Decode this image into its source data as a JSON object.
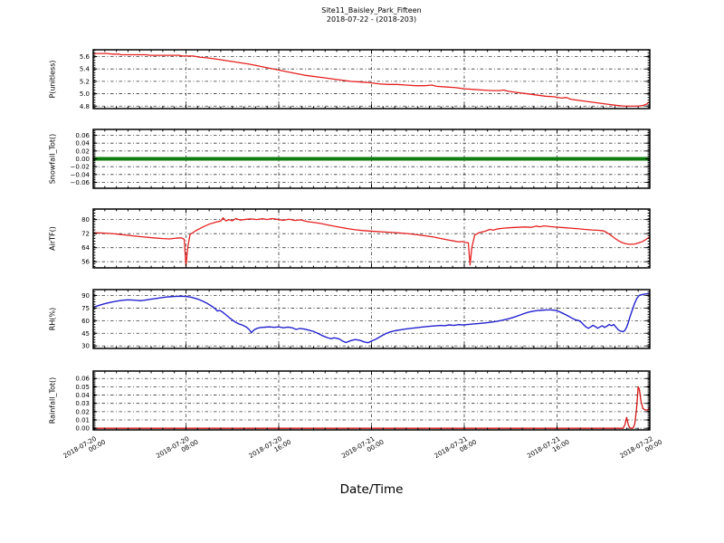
{
  "figure": {
    "title_line1": "Site11_Baisley_Park_Fifteen",
    "title_line2": "2018-07-22 - (2018-203)",
    "xlabel": "Date/Time",
    "background": "#ffffff",
    "grid_color": "#3a3a3a",
    "grid_style": "dash-dot"
  },
  "x_axis": {
    "lim_hours": [
      0,
      48
    ],
    "major_step_hours": 8,
    "minor_step_hours": 1,
    "tick_labels": [
      {
        "date": "2018-07-20",
        "time": "00:00"
      },
      {
        "date": "2018-07-20",
        "time": "08:00"
      },
      {
        "date": "2018-07-20",
        "time": "16:00"
      },
      {
        "date": "2018-07-21",
        "time": "00:00"
      },
      {
        "date": "2018-07-21",
        "time": "08:00"
      },
      {
        "date": "2018-07-21",
        "time": "16:00"
      },
      {
        "date": "2018-07-22",
        "time": "00:00"
      }
    ]
  },
  "chart_data": [
    {
      "type": "line",
      "ylabel": "P(unitless)",
      "color": "#e52020",
      "line_width": 1.3,
      "ylim": [
        4.76,
        5.71
      ],
      "yticks": [
        4.8,
        5.0,
        5.2,
        5.4,
        5.6
      ],
      "tick_decimals": 1,
      "points": [
        [
          0,
          5.65
        ],
        [
          1.2,
          5.65
        ],
        [
          1.6,
          5.64
        ],
        [
          2.2,
          5.64
        ],
        [
          2.4,
          5.63
        ],
        [
          4.6,
          5.63
        ],
        [
          4.9,
          5.62
        ],
        [
          7.4,
          5.62
        ],
        [
          7.7,
          5.61
        ],
        [
          8.6,
          5.61
        ],
        [
          9.2,
          5.59
        ],
        [
          9.8,
          5.58
        ],
        [
          10.6,
          5.56
        ],
        [
          11.3,
          5.54
        ],
        [
          12,
          5.52
        ],
        [
          12.7,
          5.5
        ],
        [
          13.4,
          5.48
        ],
        [
          14.2,
          5.45
        ],
        [
          15,
          5.42
        ],
        [
          15.8,
          5.39
        ],
        [
          16.6,
          5.36
        ],
        [
          17.4,
          5.33
        ],
        [
          18.2,
          5.3
        ],
        [
          19,
          5.28
        ],
        [
          19.8,
          5.26
        ],
        [
          20.6,
          5.24
        ],
        [
          21.4,
          5.22
        ],
        [
          22.2,
          5.2
        ],
        [
          23,
          5.19
        ],
        [
          23.8,
          5.18
        ],
        [
          24.6,
          5.16
        ],
        [
          25.4,
          5.15
        ],
        [
          26.2,
          5.15
        ],
        [
          27,
          5.14
        ],
        [
          27.8,
          5.13
        ],
        [
          28.6,
          5.13
        ],
        [
          29.2,
          5.14
        ],
        [
          29.6,
          5.12
        ],
        [
          30.4,
          5.11
        ],
        [
          31.2,
          5.1
        ],
        [
          32,
          5.08
        ],
        [
          32.8,
          5.07
        ],
        [
          33.6,
          5.06
        ],
        [
          34.4,
          5.05
        ],
        [
          35,
          5.05
        ],
        [
          35.4,
          5.06
        ],
        [
          35.8,
          5.04
        ],
        [
          36.6,
          5.02
        ],
        [
          37.4,
          5.0
        ],
        [
          38.2,
          4.98
        ],
        [
          39,
          4.96
        ],
        [
          39.8,
          4.95
        ],
        [
          40.4,
          4.93
        ],
        [
          40.8,
          4.94
        ],
        [
          41.2,
          4.91
        ],
        [
          42,
          4.89
        ],
        [
          42.8,
          4.87
        ],
        [
          43.6,
          4.85
        ],
        [
          44.4,
          4.83
        ],
        [
          45.2,
          4.81
        ],
        [
          45.8,
          4.8
        ],
        [
          47,
          4.8
        ],
        [
          47.4,
          4.81
        ],
        [
          47.7,
          4.83
        ],
        [
          48,
          4.87
        ]
      ]
    },
    {
      "type": "line",
      "ylabel": "Snowfall_Tot()",
      "color": "#0e7c0e",
      "line_width": 4,
      "ylim": [
        -0.075,
        0.075
      ],
      "yticks": [
        -0.06,
        -0.04,
        -0.02,
        0.0,
        0.02,
        0.04,
        0.06
      ],
      "tick_decimals": 2,
      "points": [
        [
          0,
          0
        ],
        [
          48,
          0
        ]
      ]
    },
    {
      "type": "line",
      "ylabel": "AirTF()",
      "color": "#e52020",
      "line_width": 1.3,
      "ylim": [
        52.5,
        86
      ],
      "yticks": [
        56,
        64,
        72,
        80
      ],
      "tick_decimals": 0,
      "points": [
        [
          0,
          72.5
        ],
        [
          0.6,
          72.4
        ],
        [
          1.2,
          72.2
        ],
        [
          2,
          71.8
        ],
        [
          2.8,
          71.2
        ],
        [
          3.6,
          70.6
        ],
        [
          4.4,
          70.1
        ],
        [
          5.2,
          69.6
        ],
        [
          6,
          69.2
        ],
        [
          6.6,
          69.0
        ],
        [
          7.1,
          69.4
        ],
        [
          7.6,
          69.6
        ],
        [
          7.85,
          68.8
        ],
        [
          8,
          53.5
        ],
        [
          8.15,
          64
        ],
        [
          8.35,
          71.5
        ],
        [
          8.8,
          73.5
        ],
        [
          9.4,
          75.6
        ],
        [
          10,
          77.4
        ],
        [
          10.6,
          78.6
        ],
        [
          11,
          79.2
        ],
        [
          11.2,
          81
        ],
        [
          11.45,
          79.2
        ],
        [
          11.7,
          80
        ],
        [
          12,
          79.3
        ],
        [
          12.3,
          80.6
        ],
        [
          12.7,
          79.7
        ],
        [
          13.1,
          80.1
        ],
        [
          13.6,
          80.4
        ],
        [
          14.1,
          80.0
        ],
        [
          14.6,
          80.5
        ],
        [
          15,
          80.0
        ],
        [
          15.4,
          80.6
        ],
        [
          15.9,
          80.1
        ],
        [
          16.4,
          79.6
        ],
        [
          16.9,
          80.2
        ],
        [
          17.4,
          79.5
        ],
        [
          17.9,
          79.9
        ],
        [
          18.4,
          78.9
        ],
        [
          19,
          78.4
        ],
        [
          19.6,
          77.8
        ],
        [
          20.2,
          77.0
        ],
        [
          20.8,
          76.2
        ],
        [
          21.4,
          75.5
        ],
        [
          22,
          74.8
        ],
        [
          22.6,
          74.2
        ],
        [
          23.2,
          73.8
        ],
        [
          24,
          73.4
        ],
        [
          25,
          73.0
        ],
        [
          26,
          72.6
        ],
        [
          27,
          72.1
        ],
        [
          27.8,
          71.5
        ],
        [
          28.6,
          70.8
        ],
        [
          29.4,
          70.0
        ],
        [
          30,
          69.2
        ],
        [
          30.6,
          68.4
        ],
        [
          31.1,
          67.8
        ],
        [
          31.5,
          67.3
        ],
        [
          31.8,
          67.5
        ],
        [
          32.1,
          67.0
        ],
        [
          32.35,
          66.8
        ],
        [
          32.5,
          54.2
        ],
        [
          32.65,
          64
        ],
        [
          32.9,
          71.2
        ],
        [
          33.3,
          72.6
        ],
        [
          33.8,
          73.4
        ],
        [
          34.2,
          74.4
        ],
        [
          34.5,
          74.0
        ],
        [
          34.9,
          74.7
        ],
        [
          35.4,
          75.1
        ],
        [
          36,
          75.4
        ],
        [
          36.6,
          75.6
        ],
        [
          37.2,
          75.8
        ],
        [
          37.8,
          75.6
        ],
        [
          38.2,
          76.3
        ],
        [
          38.5,
          75.9
        ],
        [
          38.9,
          76.4
        ],
        [
          39.4,
          76.0
        ],
        [
          40,
          75.7
        ],
        [
          40.6,
          75.4
        ],
        [
          41.2,
          75.1
        ],
        [
          41.8,
          74.8
        ],
        [
          42.4,
          74.4
        ],
        [
          43,
          74.1
        ],
        [
          43.6,
          73.9
        ],
        [
          44,
          73.6
        ],
        [
          44.3,
          72.6
        ],
        [
          44.7,
          70.8
        ],
        [
          45.1,
          68.8
        ],
        [
          45.5,
          67.2
        ],
        [
          45.9,
          66.3
        ],
        [
          46.3,
          65.9
        ],
        [
          46.7,
          66.1
        ],
        [
          47,
          66.6
        ],
        [
          47.4,
          67.6
        ],
        [
          47.7,
          68.8
        ],
        [
          48,
          70.3
        ]
      ]
    },
    {
      "type": "line",
      "ylabel": "RH(%)",
      "color": "#2222cf",
      "line_width": 1.4,
      "ylim": [
        27,
        97
      ],
      "yticks": [
        30,
        45,
        60,
        75,
        90
      ],
      "tick_decimals": 0,
      "points": [
        [
          0,
          76
        ],
        [
          0.5,
          78.2
        ],
        [
          1,
          80.2
        ],
        [
          1.5,
          81.8
        ],
        [
          2,
          83.2
        ],
        [
          2.5,
          84.3
        ],
        [
          3,
          84.8
        ],
        [
          3.4,
          84.5
        ],
        [
          3.8,
          84.1
        ],
        [
          4.1,
          83.8
        ],
        [
          4.5,
          84.6
        ],
        [
          5,
          85.6
        ],
        [
          5.5,
          86.6
        ],
        [
          6,
          87.6
        ],
        [
          6.5,
          88.4
        ],
        [
          7,
          88.9
        ],
        [
          7.6,
          89.1
        ],
        [
          8.1,
          88.7
        ],
        [
          8.5,
          87.8
        ],
        [
          9,
          85.8
        ],
        [
          9.4,
          83.5
        ],
        [
          9.8,
          80.8
        ],
        [
          10.2,
          77.5
        ],
        [
          10.5,
          74.5
        ],
        [
          10.7,
          71.5
        ],
        [
          10.9,
          72.3
        ],
        [
          11.1,
          70.8
        ],
        [
          11.4,
          67.5
        ],
        [
          11.7,
          64
        ],
        [
          12,
          60.8
        ],
        [
          12.3,
          58
        ],
        [
          12.6,
          56
        ],
        [
          12.9,
          54.6
        ],
        [
          13.2,
          52.5
        ],
        [
          13.45,
          49.5
        ],
        [
          13.65,
          45.8
        ],
        [
          13.85,
          48.8
        ],
        [
          14.1,
          50.8
        ],
        [
          14.4,
          51.8
        ],
        [
          14.8,
          52.3
        ],
        [
          15.2,
          52.6
        ],
        [
          15.6,
          52.1
        ],
        [
          16,
          52.6
        ],
        [
          16.4,
          51.6
        ],
        [
          16.8,
          52.4
        ],
        [
          17.2,
          51.4
        ],
        [
          17.5,
          49.6
        ],
        [
          17.8,
          50.7
        ],
        [
          18.2,
          50.1
        ],
        [
          18.6,
          48.7
        ],
        [
          19,
          47.2
        ],
        [
          19.4,
          44.8
        ],
        [
          19.8,
          42
        ],
        [
          20.2,
          39.8
        ],
        [
          20.5,
          38.6
        ],
        [
          20.8,
          39.6
        ],
        [
          21.2,
          38.4
        ],
        [
          21.5,
          35.8
        ],
        [
          21.8,
          34
        ],
        [
          22.2,
          36.2
        ],
        [
          22.6,
          37.6
        ],
        [
          23,
          36.6
        ],
        [
          23.4,
          34.6
        ],
        [
          23.7,
          33.8
        ],
        [
          24,
          35.8
        ],
        [
          24.4,
          38.2
        ],
        [
          24.8,
          41.4
        ],
        [
          25.2,
          44.4
        ],
        [
          25.6,
          46.6
        ],
        [
          26,
          48
        ],
        [
          26.5,
          49.2
        ],
        [
          27,
          50.2
        ],
        [
          27.5,
          51
        ],
        [
          28,
          51.8
        ],
        [
          28.5,
          52.6
        ],
        [
          29,
          53.3
        ],
        [
          29.5,
          53.8
        ],
        [
          30,
          54.4
        ],
        [
          30.3,
          54
        ],
        [
          30.7,
          55
        ],
        [
          31.1,
          54.4
        ],
        [
          31.5,
          55.4
        ],
        [
          31.9,
          54.9
        ],
        [
          32.3,
          55.5
        ],
        [
          32.8,
          56.1
        ],
        [
          33.3,
          56.7
        ],
        [
          33.8,
          57.4
        ],
        [
          34.3,
          58.2
        ],
        [
          34.8,
          59.2
        ],
        [
          35.3,
          60.6
        ],
        [
          35.8,
          62.2
        ],
        [
          36.3,
          64.2
        ],
        [
          36.7,
          66.2
        ],
        [
          37.1,
          68.2
        ],
        [
          37.5,
          70
        ],
        [
          37.9,
          71.2
        ],
        [
          38.3,
          72
        ],
        [
          38.7,
          72.5
        ],
        [
          39.1,
          72.8
        ],
        [
          39.5,
          72.8
        ],
        [
          39.9,
          72.2
        ],
        [
          40.2,
          70.8
        ],
        [
          40.5,
          68.8
        ],
        [
          40.9,
          66
        ],
        [
          41.3,
          63
        ],
        [
          41.6,
          61
        ],
        [
          41.9,
          60
        ],
        [
          42.1,
          58
        ],
        [
          42.3,
          55
        ],
        [
          42.5,
          52.5
        ],
        [
          42.7,
          51
        ],
        [
          42.9,
          52.5
        ],
        [
          43.1,
          54.5
        ],
        [
          43.3,
          53
        ],
        [
          43.5,
          51
        ],
        [
          43.7,
          52.5
        ],
        [
          43.9,
          54
        ],
        [
          44.1,
          52
        ],
        [
          44.3,
          53.5
        ],
        [
          44.5,
          55.5
        ],
        [
          44.7,
          54
        ],
        [
          44.9,
          55.5
        ],
        [
          45.1,
          52
        ],
        [
          45.3,
          49
        ],
        [
          45.5,
          47.5
        ],
        [
          45.7,
          47
        ],
        [
          45.85,
          48.5
        ],
        [
          46,
          52
        ],
        [
          46.15,
          58
        ],
        [
          46.3,
          65
        ],
        [
          46.5,
          73
        ],
        [
          46.7,
          81
        ],
        [
          46.9,
          87
        ],
        [
          47.1,
          90.2
        ],
        [
          47.4,
          91.3
        ],
        [
          47.7,
          92
        ],
        [
          48,
          92.6
        ]
      ]
    },
    {
      "type": "line",
      "ylabel": "Rainfall_Tot()",
      "color": "#d41414",
      "line_width": 1.3,
      "ylim": [
        -0.002,
        0.069
      ],
      "yticks": [
        0.0,
        0.01,
        0.02,
        0.03,
        0.04,
        0.05,
        0.06
      ],
      "tick_decimals": 2,
      "points": [
        [
          0,
          0
        ],
        [
          45.7,
          0
        ],
        [
          45.85,
          0.004
        ],
        [
          46,
          0.013
        ],
        [
          46.15,
          0.004
        ],
        [
          46.3,
          0
        ],
        [
          46.55,
          0
        ],
        [
          46.7,
          0.005
        ],
        [
          46.85,
          0.022
        ],
        [
          47,
          0.05
        ],
        [
          47.1,
          0.047
        ],
        [
          47.25,
          0.032
        ],
        [
          47.4,
          0.024
        ],
        [
          47.6,
          0.022
        ],
        [
          47.8,
          0.022
        ],
        [
          47.9,
          0.023
        ],
        [
          48,
          0.027
        ]
      ]
    }
  ]
}
